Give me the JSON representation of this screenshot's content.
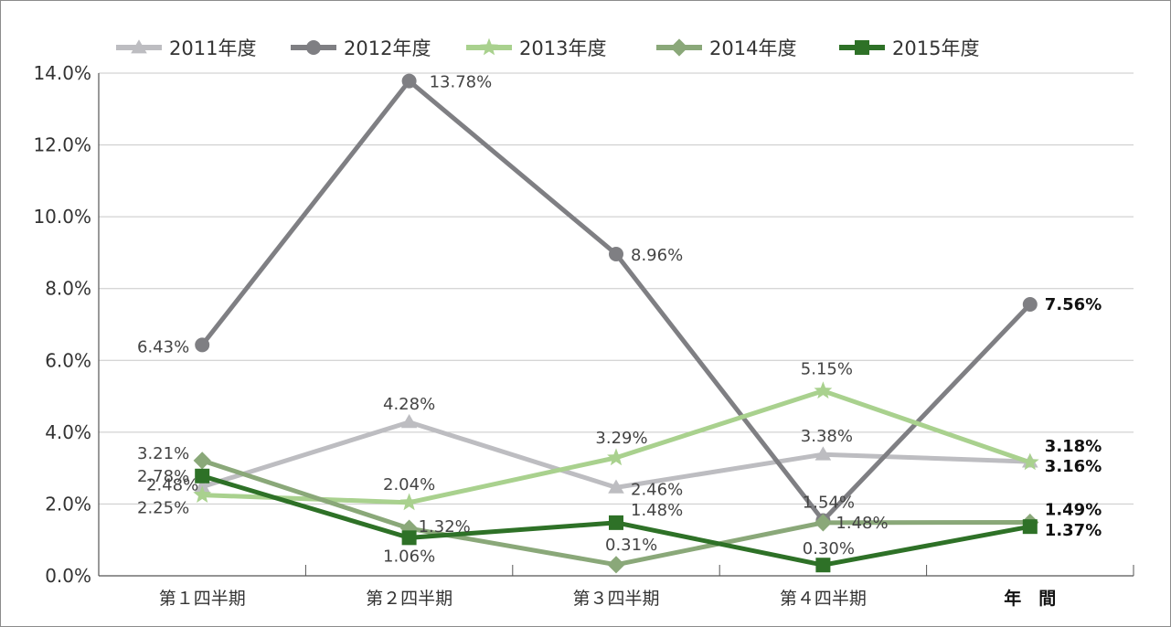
{
  "chart_data": {
    "type": "line",
    "categories": [
      "第１四半期",
      "第２四半期",
      "第３四半期",
      "第４四半期",
      "年　間"
    ],
    "y_ticks": [
      "0.0%",
      "2.0%",
      "4.0%",
      "6.0%",
      "8.0%",
      "10.0%",
      "12.0%",
      "14.0%"
    ],
    "ylim": [
      0,
      14
    ],
    "grid": true,
    "legend_position": "top",
    "series": [
      {
        "name": "2011年度",
        "color": "#bdbdc1",
        "marker": "triangle",
        "values": [
          2.48,
          4.28,
          2.46,
          3.38,
          3.18
        ],
        "labels": [
          "2.48%",
          "4.28%",
          "2.46%",
          "3.38%",
          "3.18%"
        ]
      },
      {
        "name": "2012年度",
        "color": "#7f7f83",
        "marker": "circle",
        "values": [
          6.43,
          13.78,
          8.96,
          1.54,
          7.56
        ],
        "labels": [
          "6.43%",
          "13.78%",
          "8.96%",
          "1.54%",
          "7.56%"
        ]
      },
      {
        "name": "2013年度",
        "color": "#a9d18e",
        "marker": "star",
        "values": [
          2.25,
          2.04,
          3.29,
          5.15,
          3.16
        ],
        "labels": [
          "2.25%",
          "2.04%",
          "3.29%",
          "5.15%",
          "3.16%"
        ]
      },
      {
        "name": "2014年度",
        "color": "#8aa879",
        "marker": "diamond",
        "values": [
          3.21,
          1.32,
          0.31,
          1.48,
          1.49
        ],
        "labels": [
          "3.21%",
          "1.32%",
          "0.31%",
          "1.48%",
          "1.49%"
        ]
      },
      {
        "name": "2015年度",
        "color": "#2e7127",
        "marker": "square",
        "values": [
          2.78,
          1.06,
          1.48,
          0.3,
          1.37
        ],
        "labels": [
          "2.78%",
          "1.06%",
          "1.48%",
          "0.30%",
          "1.37%"
        ]
      }
    ]
  }
}
